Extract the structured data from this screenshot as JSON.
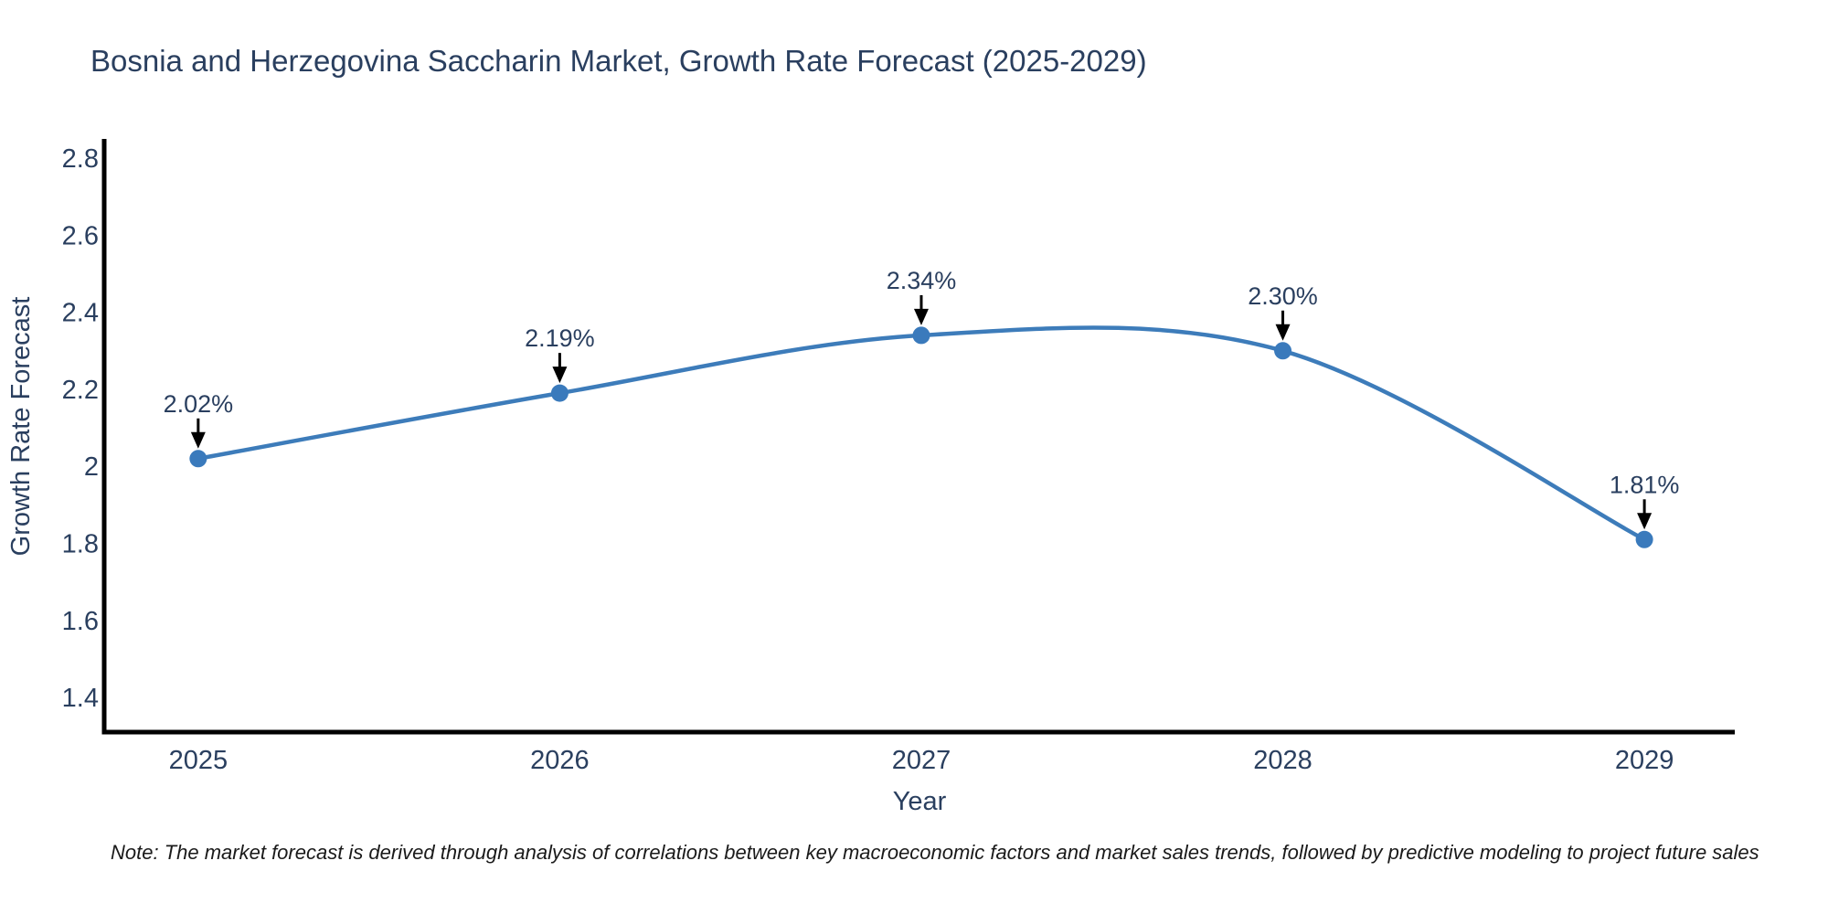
{
  "note": "Note: The market forecast is derived through analysis of correlations between key macroeconomic factors and market sales trends, followed by predictive modeling to project future sales",
  "colors": {
    "background": "#ffffff",
    "text": "#2a3f5f",
    "note_text": "#1a1a1a",
    "axis_spine": "#000000",
    "line": "#3d7cba",
    "marker": "#3a7abc",
    "arrow": "#000000"
  },
  "chart_data": {
    "type": "line",
    "title": "Bosnia and Herzegovina Saccharin Market, Growth Rate Forecast (2025-2029)",
    "xlabel": "Year",
    "ylabel": "Growth Rate Forecast",
    "x": [
      2025,
      2026,
      2027,
      2028,
      2029
    ],
    "categories": [
      "2025",
      "2026",
      "2027",
      "2028",
      "2029"
    ],
    "series": [
      {
        "name": "Growth Rate Forecast",
        "values": [
          2.02,
          2.19,
          2.34,
          2.3,
          1.81
        ]
      }
    ],
    "point_labels": [
      "2.02%",
      "2.19%",
      "2.34%",
      "2.30%",
      "1.81%"
    ],
    "ytick_labels": [
      "2.8",
      "2.6",
      "2.4",
      "2.2",
      "2",
      "1.8",
      "1.6",
      "1.4"
    ],
    "ytick_values": [
      2.8,
      2.6,
      2.4,
      2.2,
      2.0,
      1.8,
      1.6,
      1.4
    ],
    "ylim": [
      1.31,
      2.85
    ],
    "xlim": [
      2024.74,
      2029.25
    ],
    "line_shape": "spline",
    "grid": false,
    "legend": false,
    "annotation_arrows": true
  }
}
